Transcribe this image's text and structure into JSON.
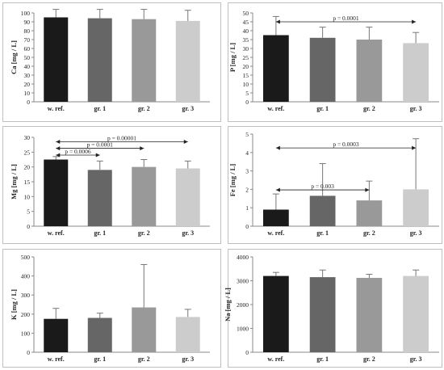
{
  "chart_data": [
    {
      "type": "bar",
      "ylabel": "Ca [mg / L]",
      "categories": [
        "w. ref.",
        "gr. 1",
        "gr. 2",
        "gr. 3"
      ],
      "values": [
        95,
        94,
        93,
        91
      ],
      "errors": [
        9,
        10,
        11,
        12
      ],
      "ylim": [
        0,
        100
      ],
      "yticks": [
        "0",
        "10",
        "20",
        "30",
        "40",
        "50",
        "60",
        "70",
        "80",
        "90",
        "100"
      ],
      "colors": [
        "#1a1a1a",
        "#666666",
        "#999999",
        "#cccccc"
      ],
      "annotations": []
    },
    {
      "type": "bar",
      "ylabel": "P [mg / L]",
      "categories": [
        "w. ref.",
        "gr. 1",
        "gr. 2",
        "gr. 3"
      ],
      "values": [
        37.5,
        36,
        35,
        33
      ],
      "errors": [
        10.5,
        6,
        7,
        6
      ],
      "ylim": [
        0,
        50
      ],
      "yticks": [
        "0",
        "5",
        "10",
        "15",
        "20",
        "25",
        "30",
        "35",
        "40",
        "45",
        "50"
      ],
      "colors": [
        "#1a1a1a",
        "#666666",
        "#999999",
        "#cccccc"
      ],
      "annotations": [
        {
          "text": "p = 0.0001",
          "from": 0,
          "to": 3,
          "y": 45
        }
      ]
    },
    {
      "type": "bar",
      "ylabel": "Mg [mg / L]",
      "categories": [
        "w. ref.",
        "gr. 1",
        "gr. 2",
        "gr. 3"
      ],
      "values": [
        22.5,
        19,
        20,
        19.5
      ],
      "errors": [
        1,
        3,
        2.5,
        2.5
      ],
      "ylim": [
        0,
        30
      ],
      "yticks": [
        "0",
        "5",
        "10",
        "15",
        "20",
        "25",
        "30"
      ],
      "colors": [
        "#1a1a1a",
        "#666666",
        "#999999",
        "#cccccc"
      ],
      "annotations": [
        {
          "text": "p = 0.00001",
          "from": 0,
          "to": 3,
          "y": 28.5
        },
        {
          "text": "p = 0.0001",
          "from": 0,
          "to": 2,
          "y": 26.3
        },
        {
          "text": "p = 0.0006",
          "from": 0,
          "to": 1,
          "y": 24
        }
      ]
    },
    {
      "type": "bar",
      "ylabel": "Fe [mg / L]",
      "categories": [
        "w. ref.",
        "gr. 1",
        "gr. 2",
        "gr. 3"
      ],
      "values": [
        0.9,
        1.65,
        1.4,
        2.0
      ],
      "errors": [
        0.85,
        1.75,
        1.05,
        2.75
      ],
      "ylim": [
        0,
        5
      ],
      "yticks": [
        "0",
        "1",
        "2",
        "3",
        "4",
        "5"
      ],
      "colors": [
        "#1a1a1a",
        "#666666",
        "#999999",
        "#cccccc"
      ],
      "annotations": [
        {
          "text": "p = 0.0003",
          "from": 0,
          "to": 3,
          "y": 4.25
        },
        {
          "text": "p = 0.003",
          "from": 0,
          "to": 2,
          "y": 1.97
        }
      ]
    },
    {
      "type": "bar",
      "ylabel": "K [mg / L]",
      "categories": [
        "w. ref.",
        "gr. 1",
        "gr. 2",
        "gr. 3"
      ],
      "values": [
        175,
        180,
        235,
        185
      ],
      "errors": [
        55,
        25,
        225,
        40
      ],
      "ylim": [
        0,
        500
      ],
      "yticks": [
        "0",
        "100",
        "200",
        "300",
        "400",
        "500"
      ],
      "colors": [
        "#1a1a1a",
        "#666666",
        "#999999",
        "#cccccc"
      ],
      "annotations": []
    },
    {
      "type": "bar",
      "ylabel": "Na [mg / L]",
      "categories": [
        "w. ref.",
        "gr. 1",
        "gr. 2",
        "gr. 3"
      ],
      "values": [
        3200,
        3150,
        3120,
        3200
      ],
      "errors": [
        150,
        300,
        150,
        250
      ],
      "ylim": [
        0,
        4000
      ],
      "yticks": [
        "0",
        "1000",
        "2000",
        "3000",
        "4000"
      ],
      "colors": [
        "#1a1a1a",
        "#666666",
        "#999999",
        "#cccccc"
      ],
      "annotations": []
    }
  ]
}
